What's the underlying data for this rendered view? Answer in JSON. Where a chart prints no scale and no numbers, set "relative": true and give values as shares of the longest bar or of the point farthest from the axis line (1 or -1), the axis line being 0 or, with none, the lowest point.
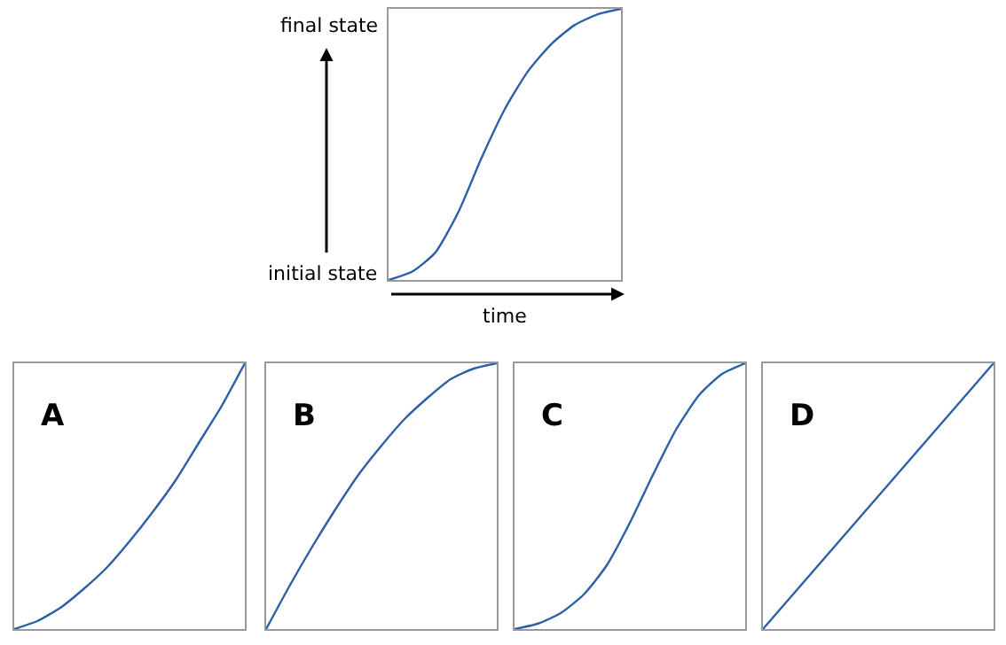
{
  "chart_data": [
    {
      "type": "line",
      "relative": true,
      "xlabel": "time",
      "annotations": [
        "final state",
        "initial state"
      ],
      "categories": [
        null,
        null,
        null,
        null,
        null,
        null,
        null,
        null,
        null,
        null,
        null
      ],
      "series": [
        {
          "color": "#2b5fa6",
          "values": [
            0,
            0.03,
            0.1,
            0.25,
            0.45,
            0.63,
            0.77,
            0.87,
            0.94,
            0.98,
            1.0
          ]
        }
      ]
    },
    {
      "type": "line",
      "relative": true,
      "title": "A",
      "categories": [
        null,
        null,
        null,
        null,
        null,
        null,
        null,
        null,
        null,
        null,
        null
      ],
      "series": [
        {
          "color": "#2b5fa6",
          "values": [
            0,
            0.03,
            0.08,
            0.15,
            0.23,
            0.33,
            0.44,
            0.56,
            0.7,
            0.84,
            1.0
          ]
        }
      ]
    },
    {
      "type": "line",
      "relative": true,
      "title": "B",
      "categories": [
        null,
        null,
        null,
        null,
        null,
        null,
        null,
        null,
        null,
        null,
        null
      ],
      "series": [
        {
          "color": "#2b5fa6",
          "values": [
            0,
            0.16,
            0.31,
            0.45,
            0.58,
            0.69,
            0.79,
            0.87,
            0.94,
            0.98,
            1.0
          ]
        }
      ]
    },
    {
      "type": "line",
      "relative": true,
      "title": "C",
      "categories": [
        null,
        null,
        null,
        null,
        null,
        null,
        null,
        null,
        null,
        null,
        null
      ],
      "series": [
        {
          "color": "#2b5fa6",
          "values": [
            0,
            0.02,
            0.06,
            0.13,
            0.24,
            0.4,
            0.58,
            0.75,
            0.88,
            0.96,
            1.0
          ]
        }
      ]
    },
    {
      "type": "line",
      "relative": true,
      "title": "D",
      "categories": [
        null,
        null,
        null,
        null,
        null,
        null,
        null,
        null,
        null,
        null,
        null
      ],
      "series": [
        {
          "color": "#2b5fa6",
          "values": [
            0,
            0.1,
            0.2,
            0.3,
            0.4,
            0.5,
            0.6,
            0.7,
            0.8,
            0.9,
            1.0
          ]
        }
      ]
    }
  ]
}
